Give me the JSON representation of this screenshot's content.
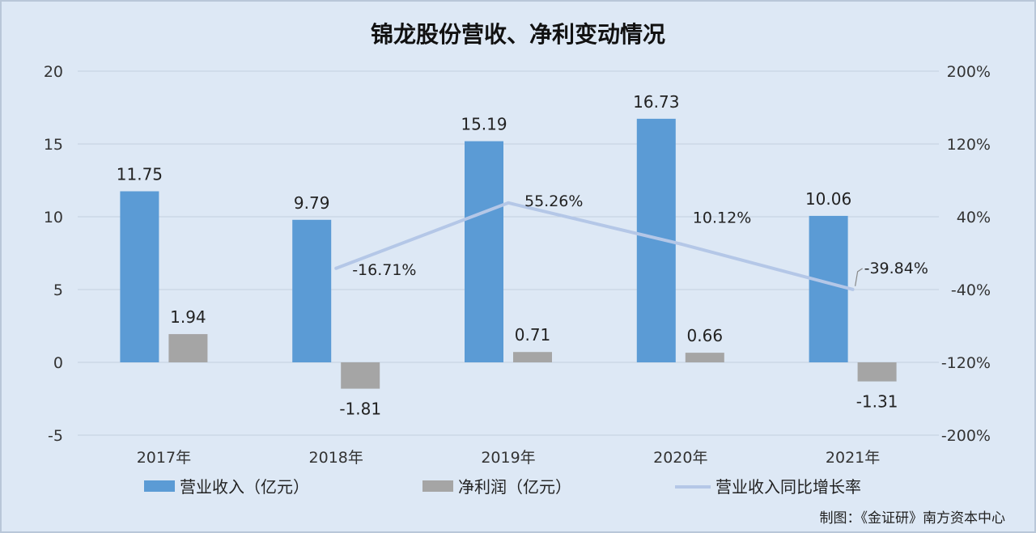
{
  "chart_data": {
    "type": "bar",
    "title": "锦龙股份营收、净利变动情况",
    "categories": [
      "2017年",
      "2018年",
      "2019年",
      "2020年",
      "2021年"
    ],
    "series": [
      {
        "name": "营业收入（亿元）",
        "kind": "bar",
        "axis": "left",
        "color": "#5b9bd5",
        "values": [
          11.75,
          9.79,
          15.19,
          16.73,
          10.06
        ],
        "labels": [
          "11.75",
          "9.79",
          "15.19",
          "16.73",
          "10.06"
        ]
      },
      {
        "name": "净利润（亿元）",
        "kind": "bar",
        "axis": "left",
        "color": "#a5a5a5",
        "values": [
          1.94,
          -1.81,
          0.71,
          0.66,
          -1.31
        ],
        "labels": [
          "1.94",
          "-1.81",
          "0.71",
          "0.66",
          "-1.31"
        ]
      },
      {
        "name": "营业收入同比增长率",
        "kind": "line",
        "axis": "right",
        "color": "#b4c7e7",
        "values": [
          null,
          -16.71,
          55.26,
          10.12,
          -39.84
        ],
        "labels": [
          "",
          "-16.71%",
          "55.26%",
          "10.12%",
          "-39.84%"
        ]
      }
    ],
    "y_left": {
      "min": -5,
      "max": 20,
      "ticks": [
        "-5",
        "0",
        "5",
        "10",
        "15",
        "20"
      ]
    },
    "y_right": {
      "min": -200,
      "max": 200,
      "ticks": [
        "-200%",
        "-120%",
        "-40%",
        "40%",
        "120%",
        "200%"
      ]
    },
    "grid": true,
    "legend_position": "bottom"
  },
  "credit": "制图：《金证研》南方资本中心"
}
